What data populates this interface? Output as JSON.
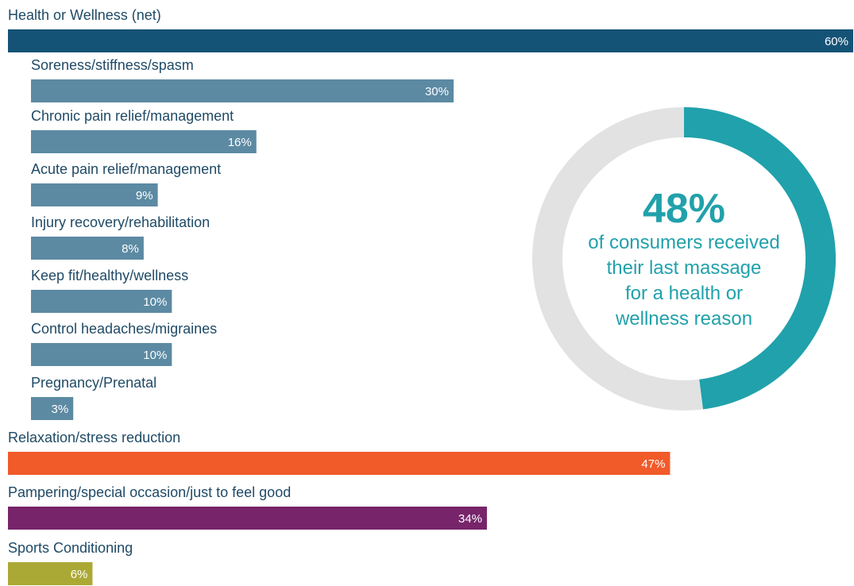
{
  "chart_data": [
    {
      "type": "bar",
      "orientation": "horizontal",
      "value_unit": "%",
      "xlim": [
        0,
        60
      ],
      "grid": false,
      "categories": [
        "Health or Wellness (net)",
        "Soreness/stiffness/spasm",
        "Chronic pain relief/management",
        "Acute pain relief/management",
        "Injury recovery/rehabilitation",
        "Keep fit/healthy/wellness",
        "Control headaches/migraines",
        "Pregnancy/Prenatal",
        "Relaxation/stress reduction",
        "Pampering/special occasion/just to feel good",
        "Sports Conditioning"
      ],
      "values": [
        60,
        30,
        16,
        9,
        8,
        10,
        10,
        3,
        47,
        34,
        6
      ],
      "value_labels": [
        "60%",
        "30%",
        "16%",
        "9%",
        "8%",
        "10%",
        "10%",
        "3%",
        "47%",
        "34%",
        "6%"
      ],
      "levels": [
        "main",
        "sub",
        "sub",
        "sub",
        "sub",
        "sub",
        "sub",
        "sub",
        "main",
        "main",
        "main"
      ],
      "colors": [
        "#155376",
        "#5c8aa3",
        "#5c8aa3",
        "#5c8aa3",
        "#5c8aa3",
        "#5c8aa3",
        "#5c8aa3",
        "#5c8aa3",
        "#f15a29",
        "#77246b",
        "#aba935"
      ]
    },
    {
      "type": "pie",
      "style": "donut",
      "values": [
        48,
        52
      ],
      "colors": [
        "#21a1ab",
        "#e2e2e3"
      ],
      "center_value": "48%",
      "center_text": [
        "of consumers received",
        "their last massage",
        "for a health or",
        "wellness reason"
      ]
    }
  ]
}
